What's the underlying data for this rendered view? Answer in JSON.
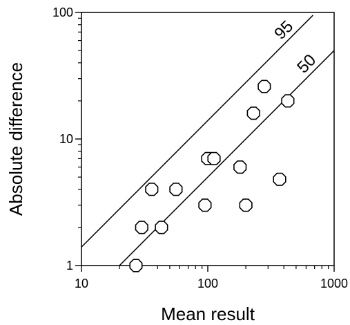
{
  "chart_data": {
    "type": "scatter",
    "title": "",
    "xlabel": "Mean result",
    "ylabel": "Absolute difference",
    "xscale": "log",
    "yscale": "log",
    "xlim": [
      10,
      1000
    ],
    "ylim": [
      1,
      100
    ],
    "grid": false,
    "legend": "none",
    "x_ticks": [
      {
        "value": 10,
        "label": "10"
      },
      {
        "value": 100,
        "label": "100"
      },
      {
        "value": 1000,
        "label": "1000"
      }
    ],
    "y_ticks": [
      {
        "value": 1,
        "label": "1"
      },
      {
        "value": 10,
        "label": "10"
      },
      {
        "value": 100,
        "label": "100"
      }
    ],
    "series": [
      {
        "marker": "octagon-open",
        "points": [
          {
            "x": 27,
            "y": 1.0
          },
          {
            "x": 30,
            "y": 2.0
          },
          {
            "x": 36,
            "y": 4.0
          },
          {
            "x": 43,
            "y": 2.0
          },
          {
            "x": 56,
            "y": 4.0
          },
          {
            "x": 95,
            "y": 3.0
          },
          {
            "x": 100,
            "y": 7.0
          },
          {
            "x": 112,
            "y": 7.0
          },
          {
            "x": 180,
            "y": 6.0
          },
          {
            "x": 200,
            "y": 3.0
          },
          {
            "x": 230,
            "y": 16.0
          },
          {
            "x": 280,
            "y": 26.0
          },
          {
            "x": 370,
            "y": 4.8
          },
          {
            "x": 430,
            "y": 20.0
          }
        ]
      }
    ],
    "reference_lines": [
      {
        "label": "95",
        "x": [
          10,
          680
        ],
        "y": [
          1.4,
          95
        ]
      },
      {
        "label": "50",
        "x": [
          20,
          1000
        ],
        "y": [
          1.0,
          50
        ]
      }
    ],
    "colors": {
      "ink": "#000000",
      "background": "#ffffff"
    }
  }
}
